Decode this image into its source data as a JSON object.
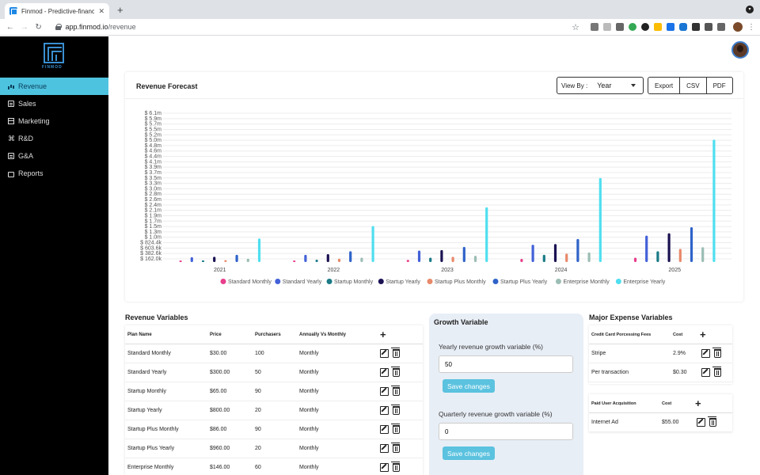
{
  "browser": {
    "tab_title": "Finmod - Predictive-financial m",
    "url_host": "app.finmod.io",
    "url_path": "/revenue"
  },
  "brand": {
    "logo_text": "FINMOD",
    "accent": "#4ec3e0",
    "logo_color": "#3a8fd1"
  },
  "sidebar": {
    "items": [
      {
        "label": "Revenue",
        "icon": "bar-chart-icon",
        "active": true
      },
      {
        "label": "Sales",
        "icon": "document-icon"
      },
      {
        "label": "Marketing",
        "icon": "calendar-icon"
      },
      {
        "label": "R&D",
        "icon": "command-icon"
      },
      {
        "label": "G&A",
        "icon": "document-icon"
      },
      {
        "label": "Reports",
        "icon": "folder-icon"
      }
    ]
  },
  "chart_card": {
    "title": "Revenue Forecast",
    "view_by_label": "View By :",
    "view_by_value": "Year",
    "export_label": "Export",
    "csv_label": "CSV",
    "pdf_label": "PDF"
  },
  "chart_data": {
    "type": "bar",
    "categories": [
      "2021",
      "2022",
      "2023",
      "2024",
      "2025"
    ],
    "y_ticks": [
      "$ 162.0k",
      "$ 382.6k",
      "$ 603.6k",
      "$ 824.4k",
      "$ 1.0m",
      "$ 1.3m",
      "$ 1.5m",
      "$ 1.7m",
      "$ 1.9m",
      "$ 2.1m",
      "$ 2.4m",
      "$ 2.6m",
      "$ 2.8m",
      "$ 3.0m",
      "$ 3.3m",
      "$ 3.5m",
      "$ 3.7m",
      "$ 3.9m",
      "$ 4.1m",
      "$ 4.4m",
      "$ 4.6m",
      "$ 4.8m",
      "$ 5.0m",
      "$ 5.2m",
      "$ 5.5m",
      "$ 5.7m",
      "$ 5.9m",
      "$ 6.1m"
    ],
    "ylim": [
      0,
      6.2
    ],
    "y_unit": "millions",
    "grid": true,
    "legend_placement": "bottom",
    "series": [
      {
        "name": "Standard Monthly",
        "color": "#e83e8c",
        "values": [
          0.036,
          0.06,
          0.09,
          0.13,
          0.18
        ]
      },
      {
        "name": "Standard Yearly",
        "color": "#4361d8",
        "values": [
          0.2,
          0.3,
          0.48,
          0.72,
          1.1
        ]
      },
      {
        "name": "Startup Monthly",
        "color": "#1a7a86",
        "values": [
          0.07,
          0.1,
          0.18,
          0.3,
          0.45
        ]
      },
      {
        "name": "Startup Yearly",
        "color": "#1a1252",
        "values": [
          0.22,
          0.33,
          0.5,
          0.75,
          1.2
        ]
      },
      {
        "name": "Startup Plus Monthly",
        "color": "#e8896a",
        "values": [
          0.08,
          0.14,
          0.22,
          0.35,
          0.55
        ]
      },
      {
        "name": "Startup Plus Yearly",
        "color": "#2f63c9",
        "values": [
          0.3,
          0.45,
          0.63,
          0.96,
          1.45
        ]
      },
      {
        "name": "Enterprise Monthly",
        "color": "#9bbdb4",
        "values": [
          0.14,
          0.18,
          0.26,
          0.4,
          0.62
        ]
      },
      {
        "name": "Enterprise Yearly",
        "color": "#4fdff0",
        "values": [
          0.98,
          1.5,
          2.28,
          3.5,
          5.1
        ]
      }
    ]
  },
  "revenue_variables": {
    "title": "Revenue Variables",
    "headers": [
      "Plan Name",
      "Price",
      "Purchasers",
      "Annually Vs Monthly"
    ],
    "rows": [
      {
        "name": "Standard Monthly",
        "price": "$30.00",
        "purchasers": "100",
        "billing": "Monthly"
      },
      {
        "name": "Standard Yearly",
        "price": "$300.00",
        "purchasers": "50",
        "billing": "Monthly"
      },
      {
        "name": "Startup Monthly",
        "price": "$65.00",
        "purchasers": "90",
        "billing": "Monthly"
      },
      {
        "name": "Startup Yearly",
        "price": "$800.00",
        "purchasers": "20",
        "billing": "Monthly"
      },
      {
        "name": "Startup Plus Monthly",
        "price": "$86.00",
        "purchasers": "90",
        "billing": "Monthly"
      },
      {
        "name": "Startup Plus Yearly",
        "price": "$960.00",
        "purchasers": "20",
        "billing": "Monthly"
      },
      {
        "name": "Enterprise Monthly",
        "price": "$146.00",
        "purchasers": "60",
        "billing": "Monthly"
      }
    ]
  },
  "growth": {
    "title": "Growth Variable",
    "yearly_label": "Yearly revenue growth variable (%)",
    "yearly_value": "50",
    "quarterly_label": "Quarterly revenue growth variable (%)",
    "quarterly_value": "0",
    "save_label": "Save changes"
  },
  "expenses": {
    "title": "Major Expense Variables",
    "card_processing": {
      "headers": [
        "Credit Card Porcessing Fees",
        "Cost"
      ],
      "rows": [
        {
          "name": "Stripe",
          "cost": "2.9%"
        },
        {
          "name": "Per transaction",
          "cost": "$0.30"
        }
      ]
    },
    "user_acquisition": {
      "headers": [
        "Paid User Acquisition",
        "Cost"
      ],
      "rows": [
        {
          "name": "Internet Ad",
          "cost": "$55.00"
        }
      ]
    }
  }
}
